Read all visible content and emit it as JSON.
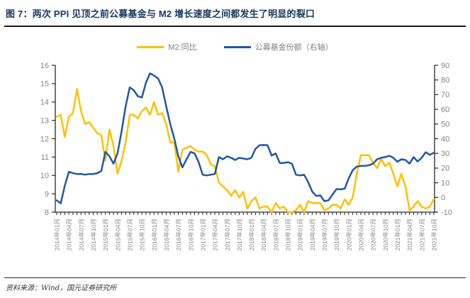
{
  "title": "图 7：两次 PPI 见顶之前公募基金与 M2 增长速度之间都发生了明显的裂口",
  "legend": [
    {
      "label": "M2:同比",
      "color": "#FFC000"
    },
    {
      "label": "公募基金份额（右轴）",
      "color": "#2057A7"
    }
  ],
  "footer": {
    "source": "资料来源：Wind，国元证券研究所"
  },
  "colors": {
    "title_text": "#17375E",
    "m2_line": "#FFC000",
    "fund_line": "#2057A7",
    "axis_line": "#262626",
    "axis_text": "#848484"
  },
  "chart_data": {
    "type": "line",
    "title": "图 7：两次 PPI 见顶之前公募基金与 M2 增长速度之间都发生了明显的裂口",
    "x_start": "2014年01月",
    "x_end": "2021年10月",
    "x_frequency": "monthly",
    "x_tick_labels": [
      "2014年01月",
      "2014年04月",
      "2014年07月",
      "2014年10月",
      "2015年01月",
      "2015年04月",
      "2015年07月",
      "2015年10月",
      "2016年01月",
      "2016年04月",
      "2016年07月",
      "2016年10月",
      "2017年01月",
      "2017年04月",
      "2017年07月",
      "2017年10月",
      "2018年01月",
      "2018年04月",
      "2018年07月",
      "2018年10月",
      "2019年01月",
      "2019年04月",
      "2019年07月",
      "2019年10月",
      "2020年01月",
      "2020年04月",
      "2020年07月",
      "2020年10月",
      "2021年01月",
      "2021年04月",
      "2021年07月",
      "2021年10月"
    ],
    "left_axis": {
      "min": 8,
      "max": 16,
      "step": 1,
      "ticks": [
        8,
        9,
        10,
        11,
        12,
        13,
        14,
        15,
        16
      ]
    },
    "right_axis": {
      "min": -10,
      "max": 90,
      "step": 10,
      "ticks": [
        -10,
        0,
        10,
        20,
        30,
        40,
        50,
        60,
        70,
        80,
        90
      ]
    },
    "grid": false,
    "legend_position": "top-center",
    "series": [
      {
        "name": "M2:同比",
        "axis": "left",
        "color": "#FFC000",
        "values": [
          13.2,
          13.3,
          12.1,
          13.2,
          13.4,
          14.7,
          13.5,
          12.8,
          12.9,
          12.6,
          12.3,
          12.2,
          10.8,
          12.5,
          11.6,
          10.1,
          10.8,
          11.8,
          13.3,
          13.3,
          13.1,
          13.5,
          13.7,
          13.3,
          14.0,
          13.3,
          13.4,
          12.8,
          11.8,
          11.8,
          10.2,
          11.4,
          11.5,
          11.6,
          11.4,
          11.3,
          11.3,
          11.1,
          10.6,
          10.5,
          9.6,
          9.4,
          9.2,
          8.9,
          9.2,
          8.8,
          9.1,
          8.2,
          8.6,
          8.8,
          8.2,
          8.3,
          8.3,
          8.0,
          8.5,
          8.2,
          8.3,
          8.0,
          8.0,
          8.1,
          8.4,
          8.0,
          8.6,
          8.5,
          8.5,
          8.5,
          8.1,
          8.2,
          8.4,
          8.4,
          8.2,
          8.7,
          8.4,
          8.8,
          10.1,
          11.1,
          11.1,
          11.1,
          10.7,
          10.4,
          10.9,
          10.5,
          10.7,
          10.1,
          9.4,
          10.1,
          9.4,
          8.1,
          8.3,
          8.6,
          8.3,
          8.2,
          8.3,
          8.7
        ]
      },
      {
        "name": "公募基金份额（右轴）",
        "axis": "right",
        "color": "#2057A7",
        "values": [
          -2,
          -4,
          8,
          17.5,
          16.5,
          16,
          16,
          15.5,
          16,
          16,
          16.5,
          18,
          31,
          28,
          23,
          30,
          45,
          62,
          75,
          73,
          69,
          68,
          78,
          84.5,
          83,
          81,
          75,
          62,
          50,
          40,
          28,
          20.5,
          26,
          31,
          30,
          24,
          15.5,
          15,
          15.5,
          16,
          27.5,
          26,
          28,
          27,
          25.5,
          27,
          26.5,
          26,
          27,
          33,
          35.5,
          35.8,
          35.5,
          28.5,
          30,
          23.5,
          23.5,
          24,
          23,
          15.5,
          15,
          15.5,
          10.5,
          4,
          1,
          1.5,
          -2.5,
          -2,
          2,
          5.7,
          5.5,
          6,
          13,
          18.6,
          21,
          21.5,
          21.5,
          22,
          23,
          26,
          27,
          27.5,
          28.4,
          27,
          24.3,
          26,
          25.5,
          23,
          27.5,
          24.5,
          27,
          30.8,
          29,
          30.5
        ]
      }
    ]
  }
}
